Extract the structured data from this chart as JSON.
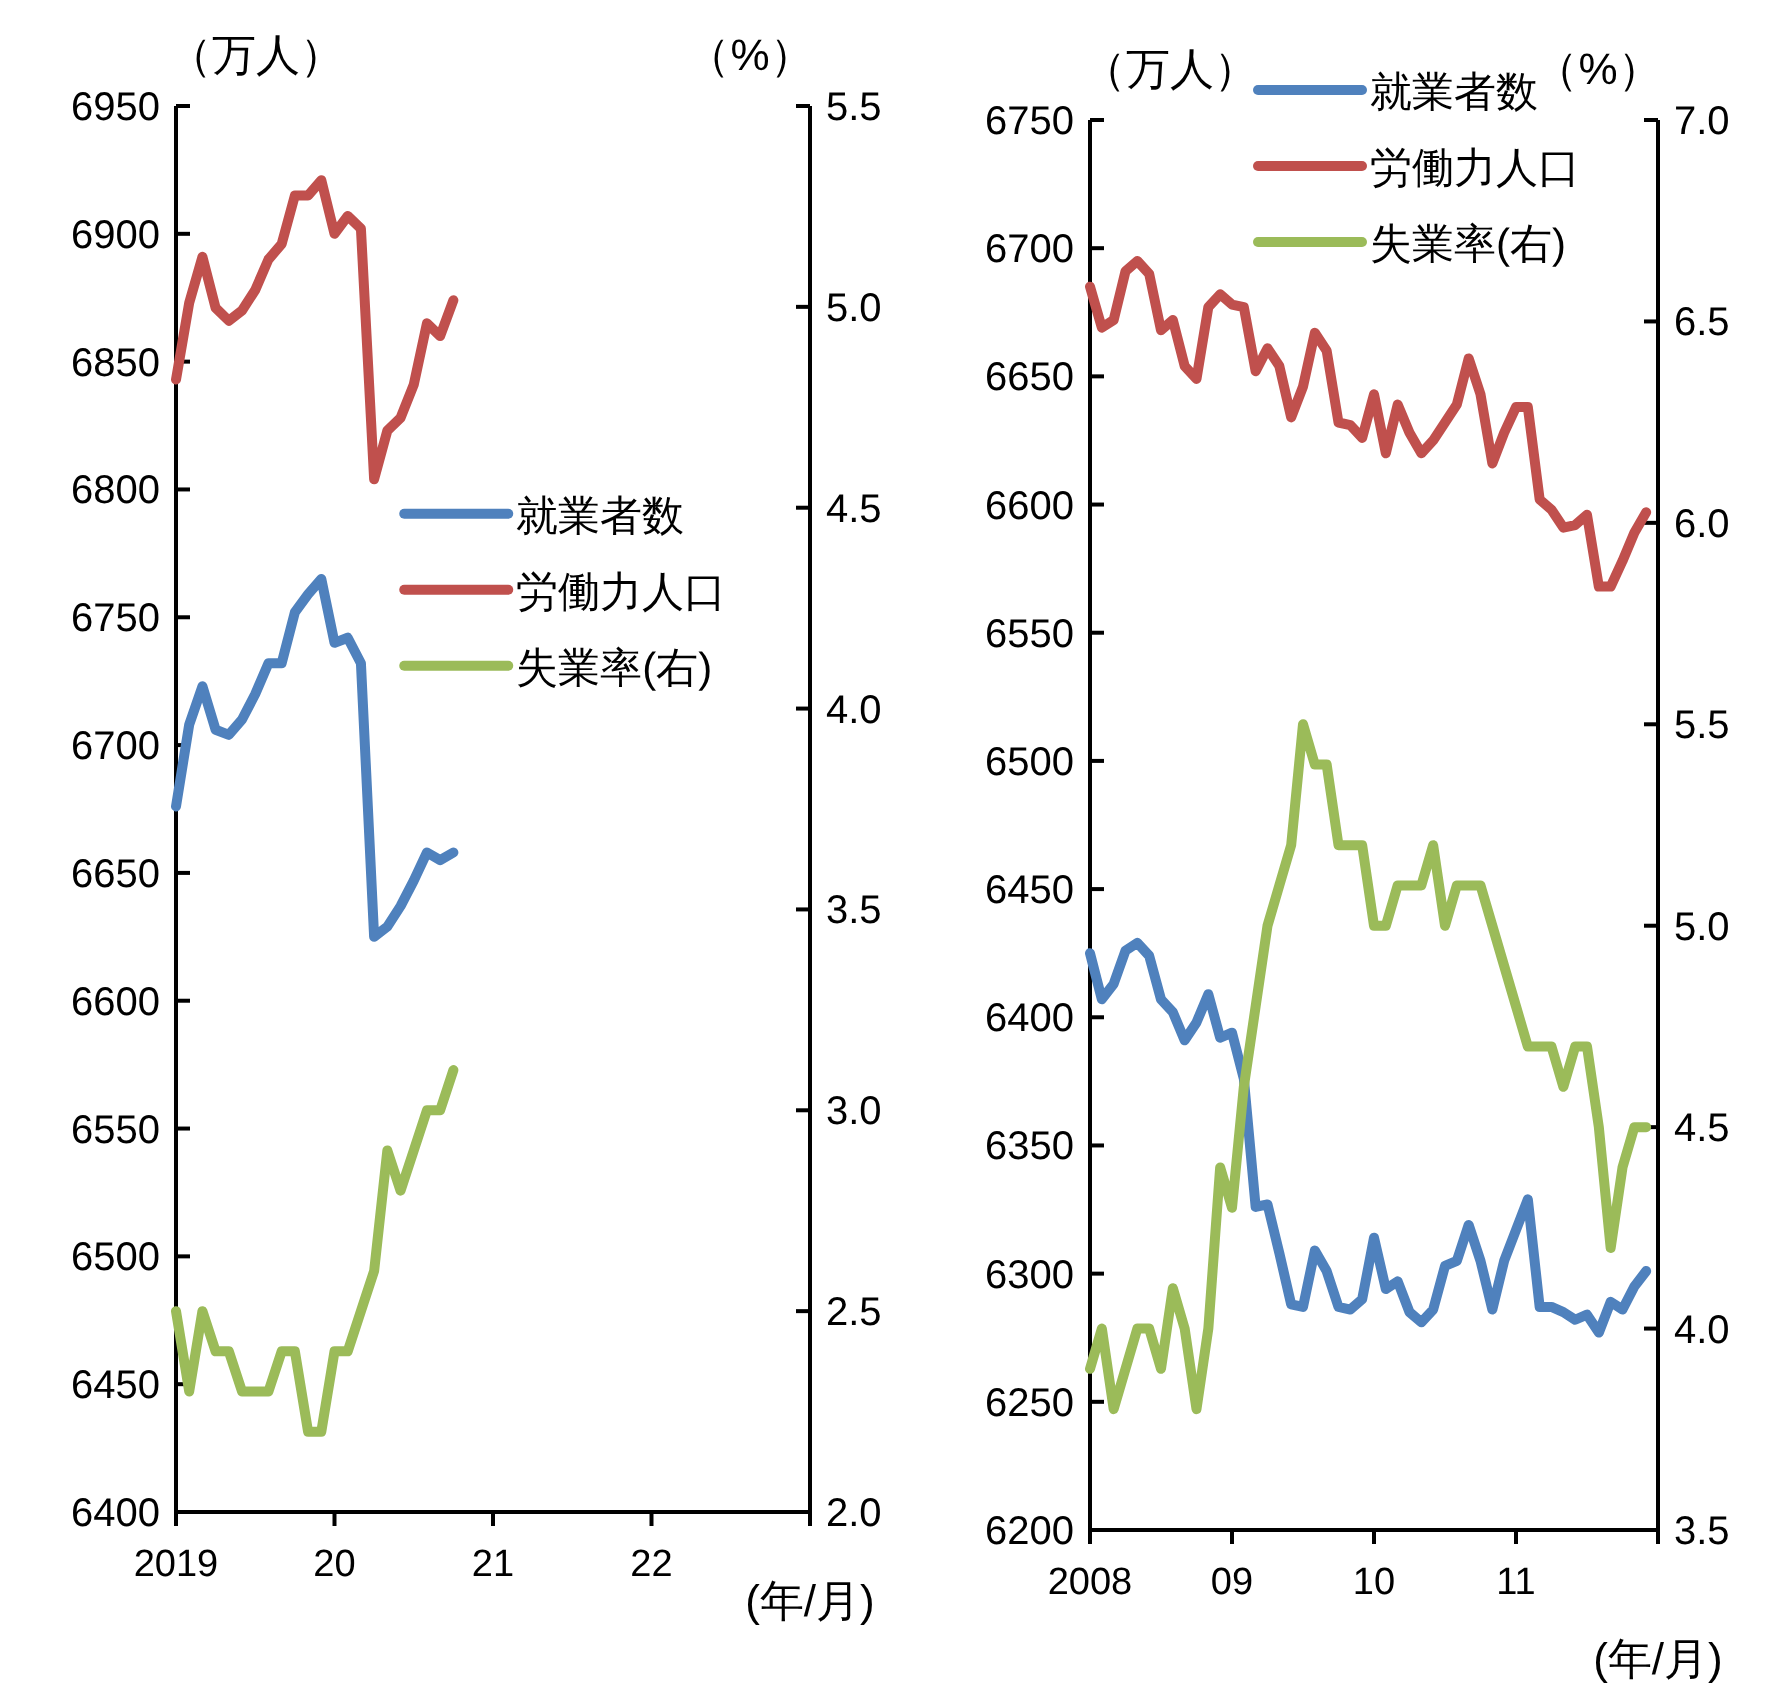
{
  "chart_data": [
    {
      "type": "line",
      "ylabel": "（万人）",
      "y2label": "（%）",
      "xlabel": "(年/月)",
      "legend": "right",
      "x": [
        "2019-01",
        "2019-02",
        "2019-03",
        "2019-04",
        "2019-05",
        "2019-06",
        "2019-07",
        "2019-08",
        "2019-09",
        "2019-10",
        "2019-11",
        "2019-12",
        "2020-01",
        "2020-02",
        "2020-03",
        "2020-04",
        "2020-05",
        "2020-06",
        "2020-07",
        "2020-08",
        "2020-09",
        "2020-10"
      ],
      "xlim": [
        "2019",
        "2023"
      ],
      "xticks": [
        {
          "value": "2019",
          "label": "2019"
        },
        {
          "value": "2020",
          "label": "20"
        },
        {
          "value": "2021",
          "label": "21"
        },
        {
          "value": "2022",
          "label": "22"
        },
        {
          "value": "2023",
          "label": null
        }
      ],
      "ylim": [
        6400,
        6950
      ],
      "yticks": [
        6400,
        6450,
        6500,
        6550,
        6600,
        6650,
        6700,
        6750,
        6800,
        6850,
        6900,
        6950
      ],
      "y2lim": [
        2.0,
        5.5
      ],
      "y2ticks": [
        {
          "value": 2,
          "label": "2.0"
        },
        2.5,
        {
          "value": 3,
          "label": "3.0"
        },
        3.5,
        {
          "value": 4,
          "label": "4.0"
        },
        4.5,
        {
          "value": 5,
          "label": "5.0"
        },
        5.5
      ],
      "series": [
        {
          "name": "就業者数",
          "color": "#4f81bd",
          "values": [
            6676,
            6708,
            6723,
            6706,
            6704,
            6710,
            6720,
            6732,
            6732,
            6752,
            6759,
            6765,
            6740,
            6742,
            6732,
            6625,
            6629,
            6637,
            6647,
            6658,
            6655,
            6658
          ]
        },
        {
          "name": "労働力人口",
          "color": "#c0504d",
          "values": [
            6843,
            6873,
            6891,
            6871,
            6866,
            6870,
            6878,
            6890,
            6896,
            6915,
            6915,
            6921,
            6900,
            6907,
            6902,
            6804,
            6823,
            6828,
            6841,
            6865,
            6860,
            6874
          ]
        },
        {
          "name": "失業率(右)",
          "color": "#9bbb59",
          "axis": "y2",
          "values": [
            2.5,
            2.3,
            2.5,
            2.4,
            2.4,
            2.3,
            2.3,
            2.3,
            2.4,
            2.4,
            2.2,
            2.2,
            2.4,
            2.4,
            2.5,
            2.6,
            2.9,
            2.8,
            2.9,
            3.0,
            3.0,
            3.1
          ]
        }
      ]
    },
    {
      "type": "line",
      "ylabel": "（万人）",
      "y2label": "（%）",
      "xlabel": "(年/月)",
      "legend": "top right",
      "x": [
        "2008-01",
        "2008-02",
        "2008-03",
        "2008-04",
        "2008-05",
        "2008-06",
        "2008-07",
        "2008-08",
        "2008-09",
        "2008-10",
        "2008-11",
        "2008-12",
        "2009-01",
        "2009-02",
        "2009-03",
        "2009-04",
        "2009-05",
        "2009-06",
        "2009-07",
        "2009-08",
        "2009-09",
        "2009-10",
        "2009-11",
        "2009-12",
        "2010-01",
        "2010-02",
        "2010-03",
        "2010-04",
        "2010-05",
        "2010-06",
        "2010-07",
        "2010-08",
        "2010-09",
        "2010-10",
        "2010-11",
        "2010-12",
        "2011-01",
        "2011-02",
        "2011-03",
        "2011-04",
        "2011-05",
        "2011-06",
        "2011-07",
        "2011-08",
        "2011-09",
        "2011-10",
        "2011-11",
        "2011-12"
      ],
      "xlim": [
        "2008",
        "2012"
      ],
      "xticks": [
        {
          "value": "2008",
          "label": "2008"
        },
        {
          "value": "2009",
          "label": "09"
        },
        {
          "value": "2010",
          "label": "10"
        },
        {
          "value": "2011",
          "label": "11"
        },
        {
          "value": "2012",
          "label": null
        }
      ],
      "ylim": [
        6200,
        6750
      ],
      "yticks": [
        6200,
        6250,
        6300,
        6350,
        6400,
        6450,
        6500,
        6550,
        6600,
        6650,
        6700,
        6750
      ],
      "y2lim": [
        3.5,
        7.0
      ],
      "y2ticks": [
        3.5,
        {
          "value": 4,
          "label": "4.0"
        },
        4.5,
        {
          "value": 5,
          "label": "5.0"
        },
        5.5,
        {
          "value": 6,
          "label": "6.0"
        },
        6.5,
        {
          "value": 7,
          "label": "7.0"
        }
      ],
      "series": [
        {
          "name": "就業者数",
          "color": "#4f81bd",
          "values": [
            6425,
            6407,
            6413,
            6426,
            6429,
            6424,
            6407,
            6402,
            6391,
            6398,
            6409,
            6392,
            6394,
            6376,
            6326,
            6327,
            6308,
            6288,
            6287,
            6309,
            6301,
            6287,
            6286,
            6290,
            6314,
            6294,
            6297,
            6285,
            6281,
            6286,
            6303,
            6305,
            6319,
            6305,
            6286,
            6305,
            6317,
            6329,
            6287,
            6287,
            6285,
            6282,
            6284,
            6277,
            6289,
            6286,
            6295,
            6301
          ]
        },
        {
          "name": "労働力人口",
          "color": "#c0504d",
          "values": [
            6685,
            6669,
            6672,
            6691,
            6695,
            6690,
            6668,
            6672,
            6654,
            6649,
            6677,
            6682,
            6678,
            6677,
            6652,
            6661,
            6654,
            6634,
            6646,
            6667,
            6660,
            6632,
            6631,
            6626,
            6643,
            6620,
            6639,
            6628,
            6620,
            6625,
            6632,
            6639,
            6657,
            6643,
            6616,
            6628,
            6638,
            6638,
            6602,
            6598,
            6591,
            6592,
            6596,
            6568,
            6568,
            6578,
            6589,
            6597
          ]
        },
        {
          "name": "失業率(右)",
          "color": "#9bbb59",
          "axis": "y2",
          "values": [
            3.9,
            4.0,
            3.8,
            3.9,
            4.0,
            4.0,
            3.9,
            4.1,
            4.0,
            3.8,
            4.0,
            4.4,
            4.3,
            4.6,
            4.8,
            5.0,
            5.1,
            5.2,
            5.5,
            5.4,
            5.4,
            5.2,
            5.2,
            5.2,
            5.0,
            5.0,
            5.1,
            5.1,
            5.1,
            5.2,
            5.0,
            5.1,
            5.1,
            5.1,
            5.0,
            4.9,
            4.8,
            4.7,
            4.7,
            4.7,
            4.6,
            4.7,
            4.7,
            4.5,
            4.2,
            4.4,
            4.5,
            4.5
          ]
        }
      ]
    }
  ]
}
